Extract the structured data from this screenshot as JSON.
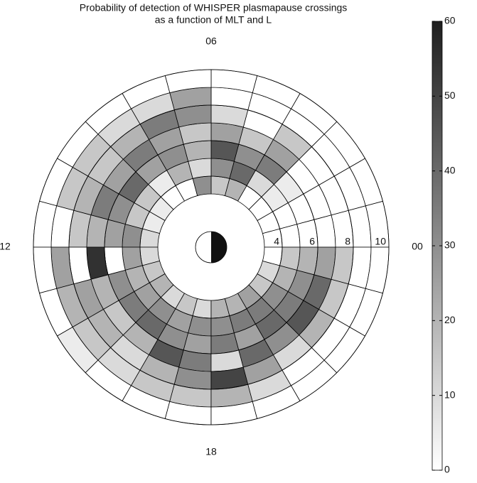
{
  "chart_data": {
    "type": "polar_heatmap",
    "title": [
      "Probability of detection of WHISPER plasmapause crossings",
      "as a function of MLT and L"
    ],
    "angular_ticks": [
      {
        "value": 0,
        "label": "00"
      },
      {
        "value": 6,
        "label": "06"
      },
      {
        "value": 12,
        "label": "12"
      },
      {
        "value": 18,
        "label": "18"
      }
    ],
    "rlim": [
      3,
      10
    ],
    "rticks": [
      4,
      6,
      8,
      10
    ],
    "values": [
      [
        0,
        0,
        0,
        0,
        0,
        0,
        0
      ],
      [
        0,
        0,
        0,
        0,
        0,
        0,
        0
      ],
      [
        0,
        5,
        5,
        0,
        0,
        0,
        0
      ],
      [
        0,
        10,
        35,
        25,
        15,
        0,
        0
      ],
      [
        20,
        40,
        30,
        15,
        0,
        0,
        0
      ],
      [
        15,
        30,
        45,
        25,
        10,
        0,
        0
      ],
      [
        30,
        10,
        20,
        15,
        30,
        25,
        0
      ],
      [
        0,
        20,
        30,
        25,
        35,
        10,
        0
      ],
      [
        0,
        5,
        25,
        35,
        20,
        10,
        0
      ],
      [
        5,
        15,
        40,
        25,
        15,
        15,
        0
      ],
      [
        5,
        15,
        30,
        35,
        20,
        15,
        0
      ],
      [
        10,
        30,
        25,
        20,
        15,
        0,
        0
      ],
      [
        10,
        25,
        0,
        55,
        0,
        25,
        0
      ],
      [
        15,
        20,
        30,
        20,
        25,
        20,
        0
      ],
      [
        20,
        25,
        35,
        15,
        20,
        15,
        5
      ],
      [
        10,
        30,
        40,
        20,
        10,
        10,
        0
      ],
      [
        15,
        25,
        30,
        45,
        20,
        15,
        0
      ],
      [
        10,
        30,
        25,
        35,
        30,
        15,
        0
      ],
      [
        20,
        30,
        35,
        10,
        50,
        20,
        0
      ],
      [
        20,
        35,
        25,
        40,
        25,
        10,
        0
      ],
      [
        25,
        35,
        40,
        30,
        10,
        0,
        0
      ],
      [
        15,
        30,
        35,
        45,
        20,
        0,
        0
      ],
      [
        10,
        20,
        30,
        40,
        15,
        0,
        0
      ],
      [
        0,
        15,
        20,
        25,
        15,
        0,
        0
      ]
    ],
    "clim": [
      0,
      60
    ],
    "cticks": [
      0,
      10,
      20,
      30,
      40,
      50,
      60
    ],
    "color_low": "#ffffff",
    "color_high": "#1e1e1e"
  }
}
